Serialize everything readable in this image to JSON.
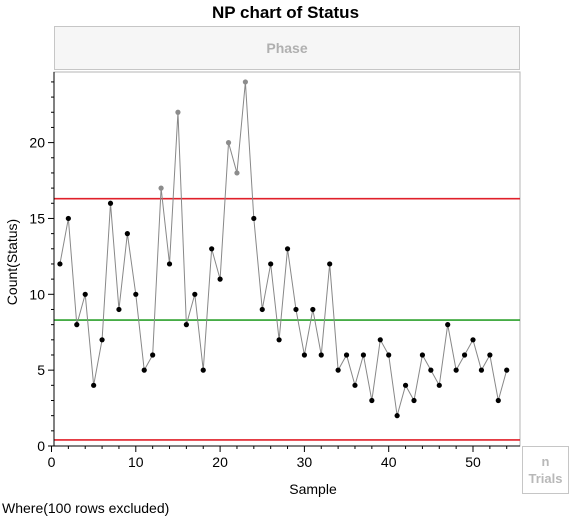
{
  "title": "NP chart of Status",
  "phase_label": "Phase",
  "trials_label": [
    "n",
    "Trials"
  ],
  "footer_note": "Where(100 rows excluded)",
  "chart_data": {
    "type": "line",
    "title": "NP chart of Status",
    "xlabel": "Sample",
    "ylabel": "Count(Status)",
    "xlim": [
      0,
      55
    ],
    "ylim": [
      0,
      24.5
    ],
    "x_ticks": [
      0,
      10,
      20,
      30,
      40,
      50
    ],
    "y_ticks": [
      0,
      5,
      10,
      15,
      20
    ],
    "grid": false,
    "control_limits": {
      "ucl": 16.3,
      "center": 8.3,
      "lcl": 0.4
    },
    "colors": {
      "limit": "#e0202a",
      "center": "#2ca02c",
      "line": "#888888",
      "point": "#000000",
      "out_point": "#8c8c8c"
    },
    "series": [
      {
        "x": [
          1,
          2,
          3,
          4,
          5,
          6,
          7,
          8,
          9,
          10,
          11,
          12,
          13,
          14,
          15,
          16,
          17,
          18,
          19,
          20,
          21,
          22,
          23,
          24,
          25,
          26,
          27,
          28,
          29,
          30,
          31,
          32,
          33,
          34,
          35,
          36,
          37,
          38,
          39,
          40,
          41,
          42,
          43,
          44,
          45,
          46,
          47,
          48,
          49,
          50,
          51,
          52,
          53,
          54
        ],
        "values": [
          12,
          15,
          8,
          10,
          4,
          7,
          16,
          9,
          14,
          10,
          5,
          6,
          17,
          12,
          22,
          8,
          10,
          5,
          13,
          11,
          20,
          18,
          24,
          15,
          9,
          12,
          7,
          13,
          9,
          6,
          9,
          6,
          12,
          5,
          6,
          4,
          6,
          3,
          7,
          6,
          2,
          4,
          3,
          6,
          5,
          4,
          8,
          5,
          6,
          7,
          5,
          6,
          3,
          5
        ]
      }
    ]
  }
}
